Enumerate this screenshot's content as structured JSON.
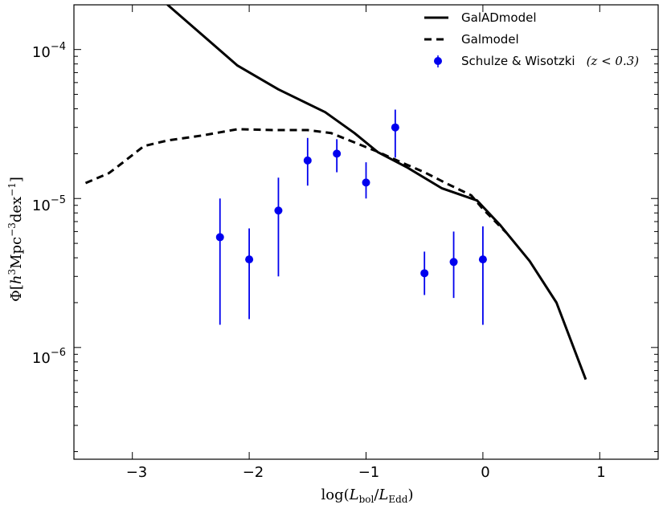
{
  "chart_data": {
    "type": "line",
    "title": "",
    "xlabel": "log(L_bol/L_Edd)",
    "ylabel": "Φ[h^3 Mpc^-3 dex^-1]",
    "xlim": [
      -3.5,
      1.5
    ],
    "ylim_log10": [
      -6.75,
      -3.7
    ],
    "yscale": "log",
    "x_ticks": [
      -3,
      -2,
      -1,
      0,
      1
    ],
    "x_tick_labels": [
      "−3",
      "−2",
      "−1",
      "0",
      "1"
    ],
    "y_major_ticks_log10": [
      -6,
      -5,
      -4
    ],
    "y_tick_labels": [
      {
        "base": "10",
        "exp": "−6"
      },
      {
        "base": "10",
        "exp": "−5"
      },
      {
        "base": "10",
        "exp": "−4"
      }
    ],
    "legend": {
      "location": "top-right",
      "entries": [
        {
          "label": "GalADmodel",
          "style": "solid"
        },
        {
          "label": "Galmodel",
          "style": "dashed"
        },
        {
          "label": "Schulze & Wisotzki",
          "label_extra": "(z < 0.3)",
          "style": "points"
        }
      ]
    },
    "series": [
      {
        "name": "GalADmodel",
        "style": "solid",
        "color": "#000000",
        "x": [
          -2.7,
          -2.1,
          -1.75,
          -1.35,
          -1.1,
          -0.9,
          -0.65,
          -0.35,
          -0.05,
          0.15,
          0.4,
          0.63,
          0.88
        ],
        "y": [
          0.0002,
          7.8e-05,
          5.4e-05,
          3.8e-05,
          2.75e-05,
          2.05e-05,
          1.62e-05,
          1.17e-05,
          9.7e-06,
          6.6e-06,
          3.8e-06,
          2e-06,
          6.1e-07
        ]
      },
      {
        "name": "Galmodel",
        "style": "dashed",
        "color": "#000000",
        "x": [
          -3.4,
          -3.2,
          -3.1,
          -2.9,
          -2.7,
          -2.4,
          -2.1,
          -1.8,
          -1.5,
          -1.3,
          -1.1,
          -0.9,
          -0.7,
          -0.5,
          -0.3,
          -0.1,
          0.0,
          0.2
        ],
        "y": [
          1.27e-05,
          1.48e-05,
          1.7e-05,
          2.25e-05,
          2.45e-05,
          2.65e-05,
          2.92e-05,
          2.88e-05,
          2.88e-05,
          2.75e-05,
          2.38e-05,
          2.06e-05,
          1.75e-05,
          1.5e-05,
          1.25e-05,
          1.05e-05,
          8.5e-06,
          5.9e-06
        ]
      },
      {
        "name": "Schulze & Wisotzki",
        "style": "errorbar",
        "color": "#0000ee",
        "x": [
          -2.25,
          -2.0,
          -1.75,
          -1.5,
          -1.25,
          -1.0,
          -0.75,
          -0.5,
          -0.25,
          0.0
        ],
        "y": [
          5.5e-06,
          3.9e-06,
          8.3e-06,
          1.8e-05,
          2e-05,
          1.28e-05,
          3e-05,
          3.15e-06,
          3.75e-06,
          3.9e-06
        ],
        "y_low": [
          1.42e-06,
          1.55e-06,
          3e-06,
          1.22e-05,
          1.5e-05,
          1e-05,
          1.88e-05,
          2.25e-06,
          2.15e-06,
          1.42e-06
        ],
        "y_high": [
          1e-05,
          6.3e-06,
          1.38e-05,
          2.55e-05,
          2.5e-05,
          1.75e-05,
          3.95e-05,
          4.4e-06,
          6e-06,
          6.5e-06
        ]
      }
    ]
  }
}
